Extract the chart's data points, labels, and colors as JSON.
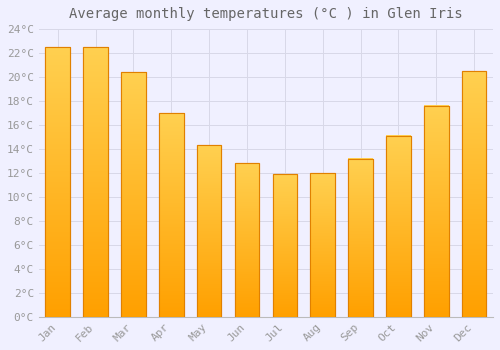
{
  "title": "Average monthly temperatures (°C ) in Glen Iris",
  "months": [
    "Jan",
    "Feb",
    "Mar",
    "Apr",
    "May",
    "Jun",
    "Jul",
    "Aug",
    "Sep",
    "Oct",
    "Nov",
    "Dec"
  ],
  "values": [
    22.5,
    22.5,
    20.4,
    17.0,
    14.3,
    12.8,
    11.9,
    12.0,
    13.2,
    15.1,
    17.6,
    20.5
  ],
  "bar_color_top": "#FFD050",
  "bar_color_bottom": "#FFA000",
  "bar_edge_color": "#E08000",
  "ylim": [
    0,
    24
  ],
  "ytick_step": 2,
  "background_color": "#F0F0FF",
  "grid_color": "#D8D8E8",
  "title_fontsize": 10,
  "tick_fontsize": 8,
  "font_family": "monospace"
}
